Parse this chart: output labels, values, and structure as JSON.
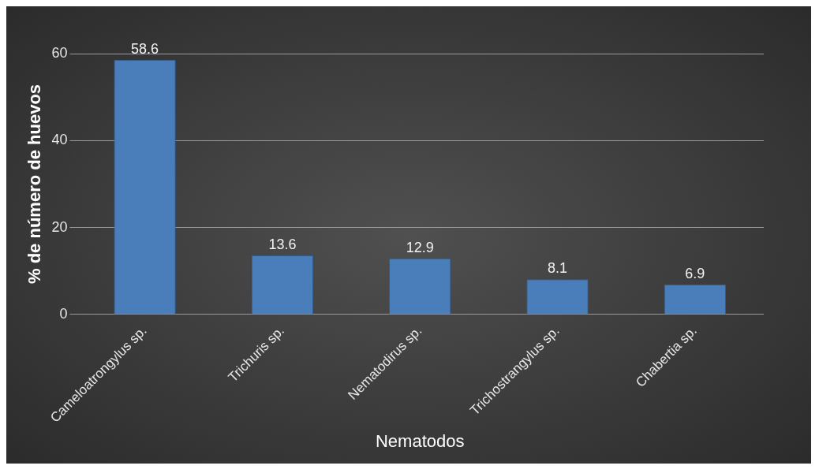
{
  "chart_data": {
    "type": "bar",
    "xlabel": "Nematodos",
    "ylabel": "% de número de huevos",
    "categories": [
      "Cameloatrongylus sp.",
      "Trichuris sp.",
      "Nematodirus sp.",
      "Trichostrangylus sp.",
      "Chabertia sp."
    ],
    "values": [
      58.6,
      13.6,
      12.9,
      8.1,
      6.9
    ],
    "color": "#4a7ebb",
    "ylim": [
      0,
      60
    ],
    "yticks": [
      0,
      20,
      40,
      60
    ],
    "grid": "y",
    "data_labels": true
  }
}
